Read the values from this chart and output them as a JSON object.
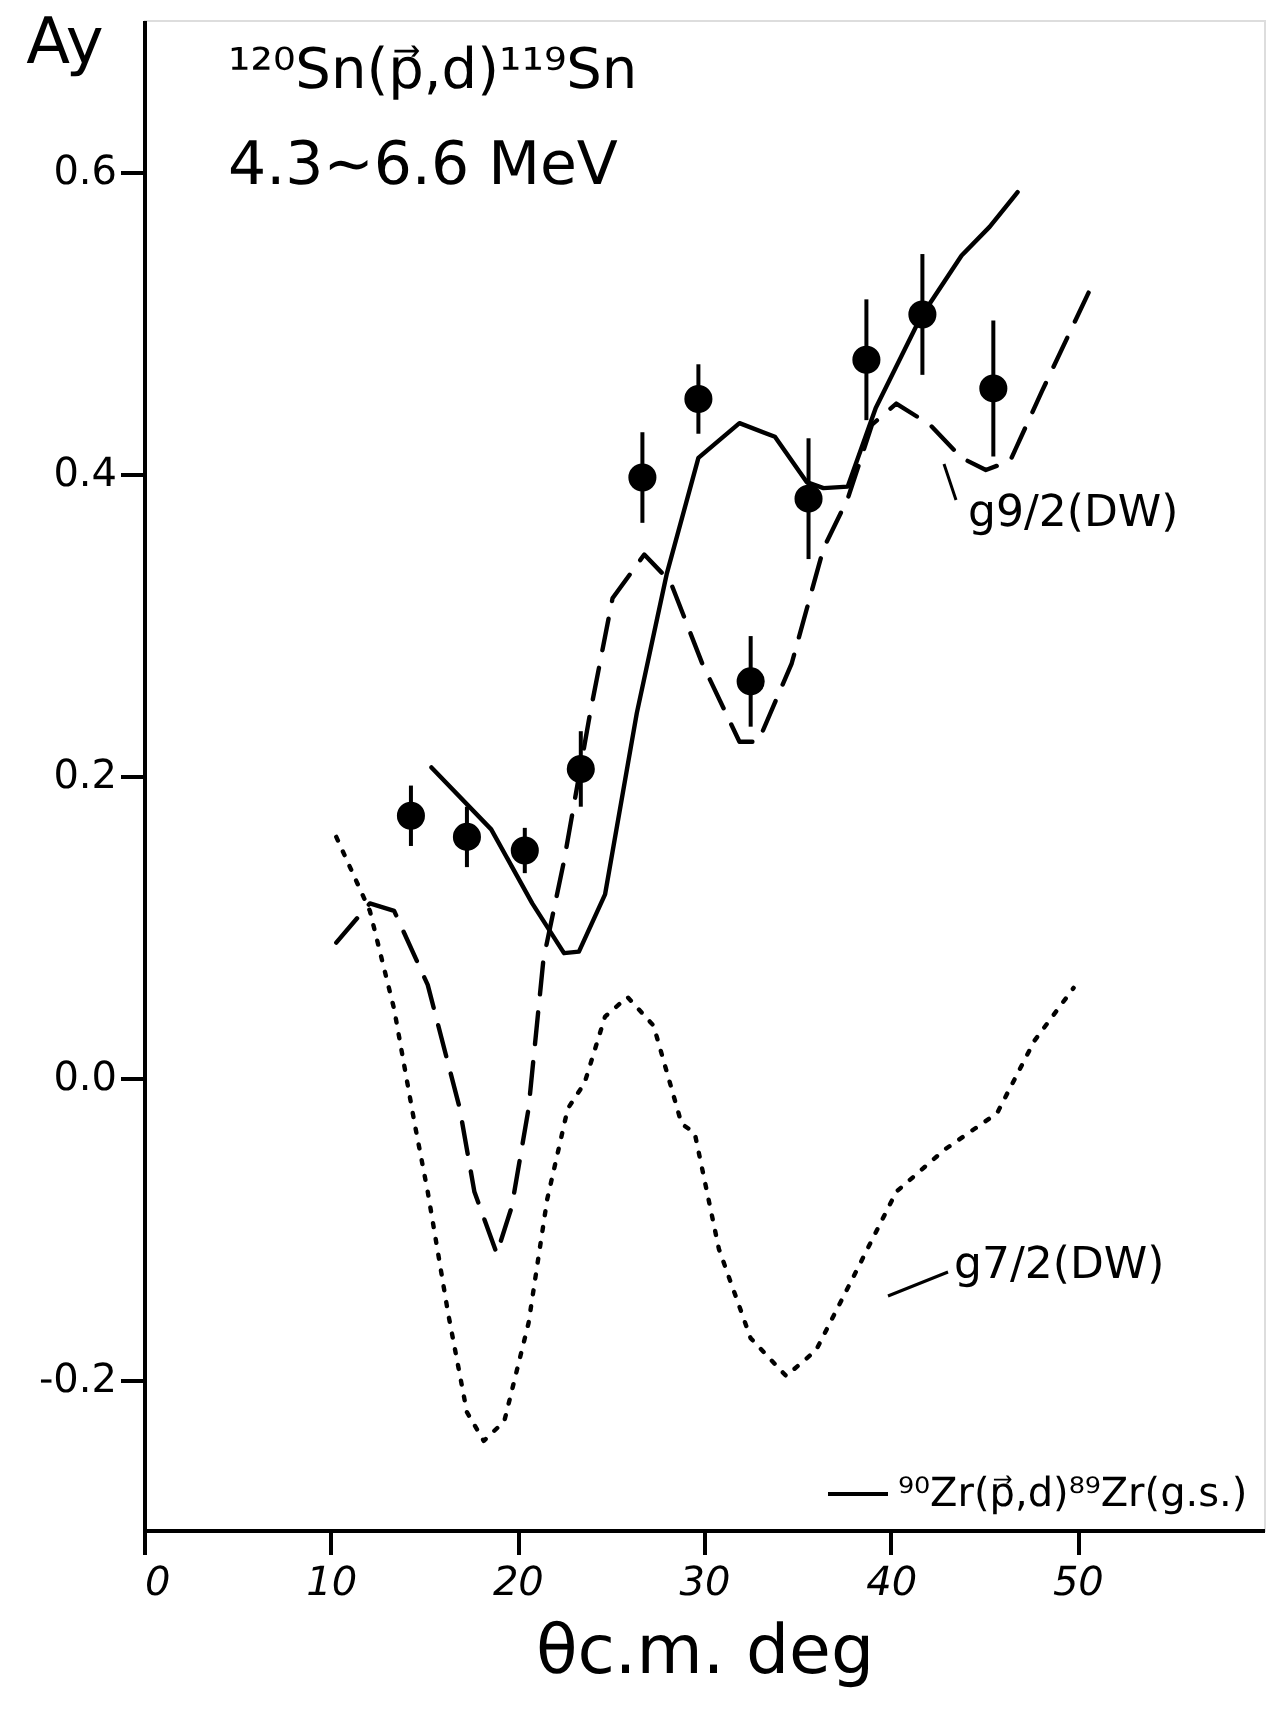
{
  "chart_data": {
    "type": "line",
    "title": "¹²⁰Sn(p⃗,d)¹¹⁹Sn",
    "subtitle": "4.3~6.6 MeV",
    "xlabel": "θc.m. deg",
    "ylabel": "Ay",
    "xlim": [
      0,
      60
    ],
    "xticks": [
      0,
      10,
      20,
      30,
      40,
      50
    ],
    "ylim": [
      -0.3,
      0.7
    ],
    "yticks": [
      {
        "value": -0.2,
        "label": "-0.2"
      },
      {
        "value": 0.0,
        "label": "0.0"
      },
      {
        "value": 0.2,
        "label": "0.2"
      },
      {
        "value": 0.4,
        "label": "0.4"
      },
      {
        "value": 0.6,
        "label": "0.6"
      }
    ],
    "grid": false,
    "legend": "bottom right",
    "series": [
      {
        "name": "⁹⁰Zr(p⃗,d)⁸⁹Zr(g.s.)",
        "line_style": "solid",
        "marker": "none",
        "color": "#000000",
        "x": [
          15.4,
          18.6,
          20.8,
          22.5,
          23.3,
          24.7,
          26.4,
          28.0,
          29.7,
          31.9,
          33.8,
          35.5,
          36.4,
          37.7,
          39.2,
          41.6,
          43.8,
          45.3,
          46.8
        ],
        "values": [
          0.205,
          0.164,
          0.115,
          0.082,
          0.083,
          0.121,
          0.241,
          0.333,
          0.41,
          0.433,
          0.424,
          0.394,
          0.39,
          0.391,
          0.443,
          0.503,
          0.544,
          0.563,
          0.586
        ]
      },
      {
        "line_style": "dashed",
        "marker": "none",
        "color": "#000000",
        "x": [
          10.3,
          12.1,
          13.4,
          15.2,
          16.9,
          17.7,
          18.9,
          19.7,
          20.6,
          21.4,
          22.5,
          23.9,
          25.1,
          26.8,
          28.2,
          29.9,
          31.9,
          32.9,
          34.7,
          36.4,
          37.7,
          39.0,
          40.3,
          42.1,
          43.8,
          45.1,
          46.4,
          48.1,
          50.7
        ],
        "values": [
          0.089,
          0.115,
          0.11,
          0.061,
          -0.02,
          -0.076,
          -0.117,
          -0.086,
          -0.021,
          0.078,
          0.143,
          0.241,
          0.317,
          0.346,
          0.328,
          0.274,
          0.222,
          0.222,
          0.274,
          0.35,
          0.383,
          0.432,
          0.446,
          0.432,
          0.41,
          0.402,
          0.408,
          0.454,
          0.522
        ]
      },
      {
        "line_style": "dotted",
        "marker": "none",
        "color": "#000000",
        "x": [
          10.3,
          12.1,
          13.4,
          14.5,
          15.2,
          16.3,
          17.3,
          18.2,
          19.3,
          20.6,
          21.6,
          22.7,
          23.6,
          24.7,
          25.9,
          27.3,
          28.8,
          29.5,
          30.8,
          32.5,
          34.4,
          36.0,
          38.1,
          40.3,
          42.9,
          45.7,
          47.7,
          49.8
        ],
        "values": [
          0.159,
          0.11,
          0.045,
          -0.031,
          -0.076,
          -0.157,
          -0.222,
          -0.241,
          -0.228,
          -0.163,
          -0.081,
          -0.021,
          -0.004,
          0.04,
          0.053,
          0.034,
          -0.031,
          -0.037,
          -0.114,
          -0.173,
          -0.198,
          -0.181,
          -0.13,
          -0.076,
          -0.048,
          -0.024,
          0.024,
          0.059
        ]
      },
      {
        "type": "scatter",
        "marker": "circle",
        "color": "#000000",
        "x": [
          14.3,
          17.3,
          20.4,
          23.4,
          26.7,
          29.7,
          32.5,
          35.6,
          38.7,
          41.7,
          45.5
        ],
        "values": [
          0.173,
          0.159,
          0.15,
          0.204,
          0.397,
          0.449,
          0.262,
          0.383,
          0.475,
          0.505,
          0.456
        ],
        "errors": [
          0.02,
          0.02,
          0.015,
          0.025,
          0.03,
          0.023,
          0.03,
          0.04,
          0.04,
          0.04,
          0.045
        ]
      }
    ],
    "annotations": [
      "g9/2(DW)",
      "g7/2(DW)"
    ]
  }
}
